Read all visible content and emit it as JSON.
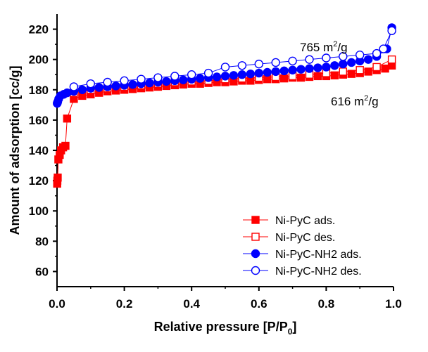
{
  "chart_data": {
    "type": "scatter",
    "title": "",
    "xlabel": "Relative pressure [P/P0]",
    "ylabel": "Amount of adsorption [cc/g]",
    "xlim": [
      0.0,
      1.0
    ],
    "ylim": [
      50,
      230
    ],
    "x_ticks": [
      "0.0",
      "0.2",
      "0.4",
      "0.6",
      "0.8",
      "1.0"
    ],
    "y_ticks": [
      "60",
      "80",
      "100",
      "120",
      "140",
      "160",
      "180",
      "200",
      "220"
    ],
    "grid": false,
    "legend_position": "bottom-right",
    "annotations": [
      {
        "text": "765 m2/g",
        "base": "765 m",
        "sup": "2",
        "tail": "/g",
        "x": 0.86,
        "y": 206
      },
      {
        "text": "616 m2/g",
        "base": "616 m",
        "sup": "2",
        "tail": "/g",
        "x": 0.86,
        "y": 172
      }
    ],
    "series": [
      {
        "name": "Ni-PyC ads.",
        "color": "#ff0000",
        "marker": "square-filled",
        "x": [
          0.0005,
          0.001,
          0.002,
          0.004,
          0.008,
          0.012,
          0.018,
          0.025,
          0.03,
          0.05,
          0.075,
          0.1,
          0.125,
          0.15,
          0.175,
          0.2,
          0.225,
          0.25,
          0.275,
          0.3,
          0.325,
          0.35,
          0.375,
          0.4,
          0.425,
          0.45,
          0.475,
          0.5,
          0.525,
          0.55,
          0.575,
          0.6,
          0.625,
          0.65,
          0.675,
          0.7,
          0.725,
          0.75,
          0.775,
          0.8,
          0.825,
          0.85,
          0.875,
          0.9,
          0.925,
          0.95,
          0.975,
          0.995
        ],
        "y": [
          118,
          120,
          122,
          134,
          137,
          140,
          142,
          143,
          161,
          174,
          176,
          177,
          178,
          179,
          179.5,
          180,
          180.5,
          181,
          181.5,
          182,
          182.5,
          183,
          183.5,
          184,
          184,
          184.5,
          185,
          185,
          185.5,
          186,
          186,
          186.5,
          187,
          187,
          187.5,
          188,
          188,
          188.5,
          189,
          189,
          189.5,
          190,
          190.5,
          191,
          192,
          193,
          194,
          196
        ]
      },
      {
        "name": "Ni-PyC des.",
        "color": "#ff0000",
        "marker": "square-open",
        "x": [
          0.995,
          0.95,
          0.9,
          0.85,
          0.8,
          0.75,
          0.7,
          0.65,
          0.6,
          0.55,
          0.5,
          0.45,
          0.4,
          0.35,
          0.3,
          0.25,
          0.2,
          0.15,
          0.1,
          0.05
        ],
        "y": [
          200,
          195,
          193,
          192,
          191,
          190,
          189,
          188.5,
          188,
          187.5,
          187,
          186,
          185.5,
          185,
          184,
          183,
          182,
          181,
          180,
          178
        ]
      },
      {
        "name": "Ni-PyC-NH2 ads.",
        "color": "#0000ff",
        "marker": "circle-filled",
        "x": [
          0.0005,
          0.002,
          0.005,
          0.01,
          0.02,
          0.03,
          0.05,
          0.075,
          0.1,
          0.125,
          0.15,
          0.175,
          0.2,
          0.225,
          0.25,
          0.275,
          0.3,
          0.325,
          0.35,
          0.375,
          0.4,
          0.425,
          0.45,
          0.475,
          0.5,
          0.525,
          0.55,
          0.575,
          0.6,
          0.625,
          0.65,
          0.675,
          0.7,
          0.725,
          0.75,
          0.775,
          0.8,
          0.825,
          0.85,
          0.875,
          0.9,
          0.925,
          0.95,
          0.98,
          0.995
        ],
        "y": [
          171,
          172,
          174,
          176,
          177,
          178,
          179,
          180,
          181,
          181.5,
          182,
          182.5,
          183,
          183.5,
          184,
          184.5,
          185,
          185.5,
          186,
          186.5,
          187,
          187.5,
          188,
          188.5,
          189,
          189.5,
          190,
          190.5,
          191,
          191.5,
          192,
          192.5,
          193,
          193.5,
          194,
          194.5,
          195,
          196,
          197,
          198,
          199,
          200,
          202,
          207,
          221
        ]
      },
      {
        "name": "Ni-PyC-NH2 des.",
        "color": "#0000ff",
        "marker": "circle-open",
        "x": [
          0.995,
          0.97,
          0.95,
          0.9,
          0.85,
          0.8,
          0.75,
          0.7,
          0.65,
          0.6,
          0.55,
          0.5,
          0.45,
          0.4,
          0.35,
          0.3,
          0.25,
          0.2,
          0.15,
          0.1,
          0.05
        ],
        "y": [
          219,
          207,
          204,
          203,
          202,
          201,
          200,
          199,
          198,
          197,
          196,
          195,
          191,
          190,
          189,
          188,
          187,
          186,
          185,
          184,
          182
        ]
      }
    ]
  }
}
